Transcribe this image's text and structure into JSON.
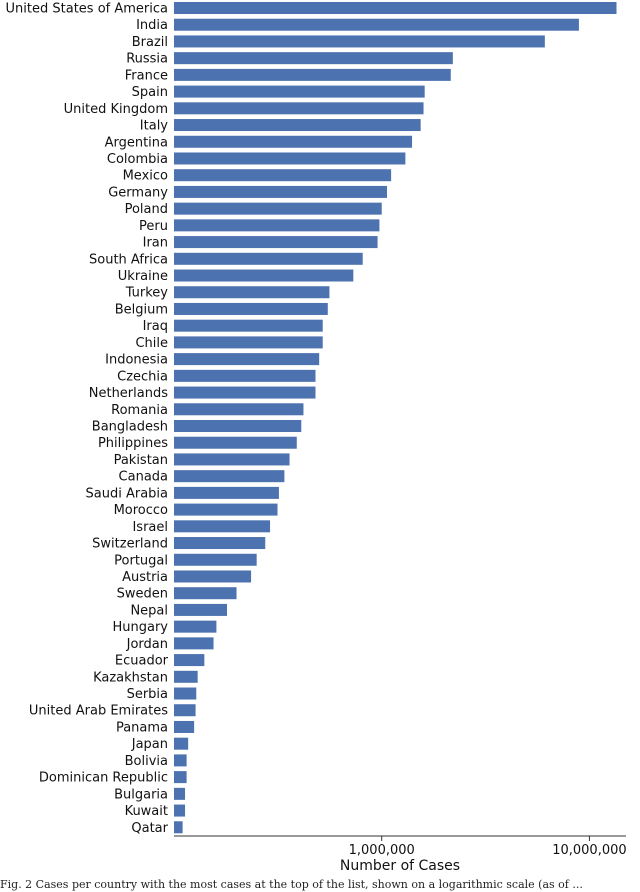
{
  "chart_data": {
    "type": "bar",
    "orientation": "horizontal",
    "xscale": "log",
    "xlim": [
      100000,
      15000000
    ],
    "xlabel": "Number of Cases",
    "bar_color": "#4c72b0",
    "xticks": [
      {
        "value": 1000000,
        "label": "1,000,000"
      },
      {
        "value": 10000000,
        "label": "10,000,000"
      }
    ],
    "categories": [
      "United States of America",
      "India",
      "Brazil",
      "Russia",
      "France",
      "Spain",
      "United Kingdom",
      "Italy",
      "Argentina",
      "Colombia",
      "Mexico",
      "Germany",
      "Poland",
      "Peru",
      "Iran",
      "South Africa",
      "Ukraine",
      "Turkey",
      "Belgium",
      "Iraq",
      "Chile",
      "Indonesia",
      "Czechia",
      "Netherlands",
      "Romania",
      "Bangladesh",
      "Philippines",
      "Pakistan",
      "Canada",
      "Saudi Arabia",
      "Morocco",
      "Israel",
      "Switzerland",
      "Portugal",
      "Austria",
      "Sweden",
      "Nepal",
      "Hungary",
      "Jordan",
      "Ecuador",
      "Kazakhstan",
      "Serbia",
      "United Arab Emirates",
      "Panama",
      "Japan",
      "Bolivia",
      "Dominican Republic",
      "Bulgaria",
      "Kuwait",
      "Qatar"
    ],
    "values": [
      13500000,
      8900000,
      6100000,
      2200000,
      2150000,
      1610000,
      1590000,
      1540000,
      1400000,
      1300000,
      1110000,
      1060000,
      1000000,
      975000,
      955000,
      810000,
      730000,
      560000,
      550000,
      520000,
      520000,
      500000,
      480000,
      480000,
      420000,
      410000,
      390000,
      360000,
      340000,
      320000,
      315000,
      290000,
      275000,
      250000,
      235000,
      200000,
      180000,
      160000,
      155000,
      140000,
      130000,
      128000,
      127000,
      125000,
      117000,
      115000,
      115000,
      113000,
      113000,
      110000
    ]
  },
  "caption": "Fig. 2 Cases per country with the most cases at the top of the list, shown on a logarithmic scale (as of ..."
}
